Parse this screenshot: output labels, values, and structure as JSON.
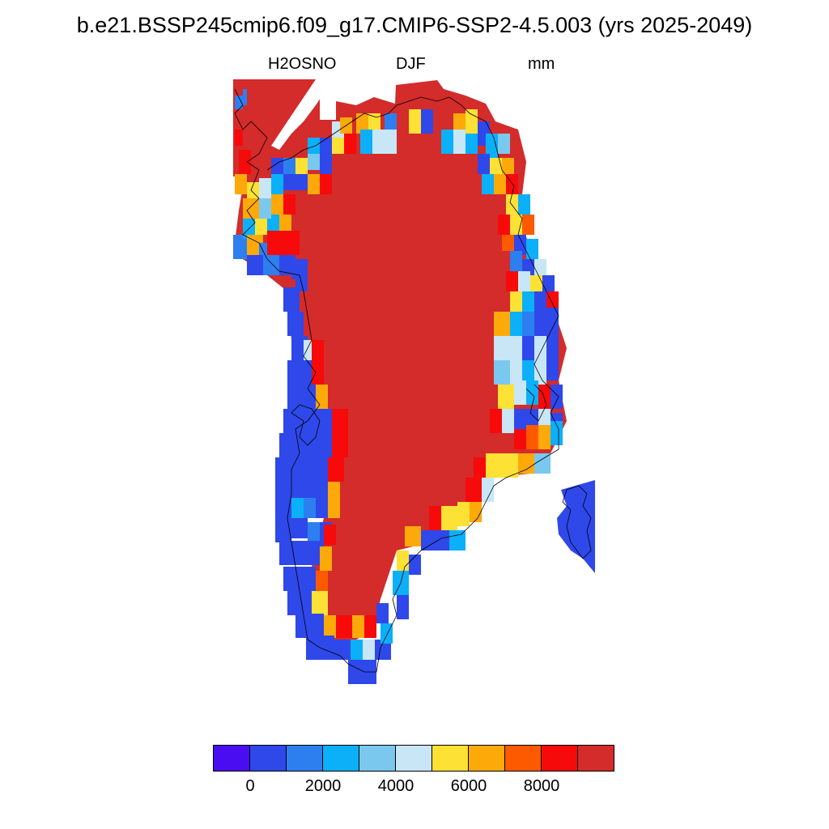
{
  "title": "b.e21.BSSP245cmip6.f09_g17.CMIP6-SSP2-4.5.003 (yrs 2025-2049)",
  "variable": "H2OSNO",
  "season": "DJF",
  "units": "mm",
  "colorbar": {
    "colors": [
      "#4a0df2",
      "#2f48ea",
      "#2d7ff0",
      "#0bb0f9",
      "#7ac8ee",
      "#c8e6f6",
      "#fde134",
      "#fda90a",
      "#fd5a00",
      "#f60a0a",
      "#d42b2b"
    ],
    "labels": [
      "0",
      "2000",
      "4000",
      "6000",
      "8000"
    ]
  },
  "map": {
    "region": "Greenland",
    "field": "snow water equivalent",
    "interior_value": "> 9000"
  }
}
